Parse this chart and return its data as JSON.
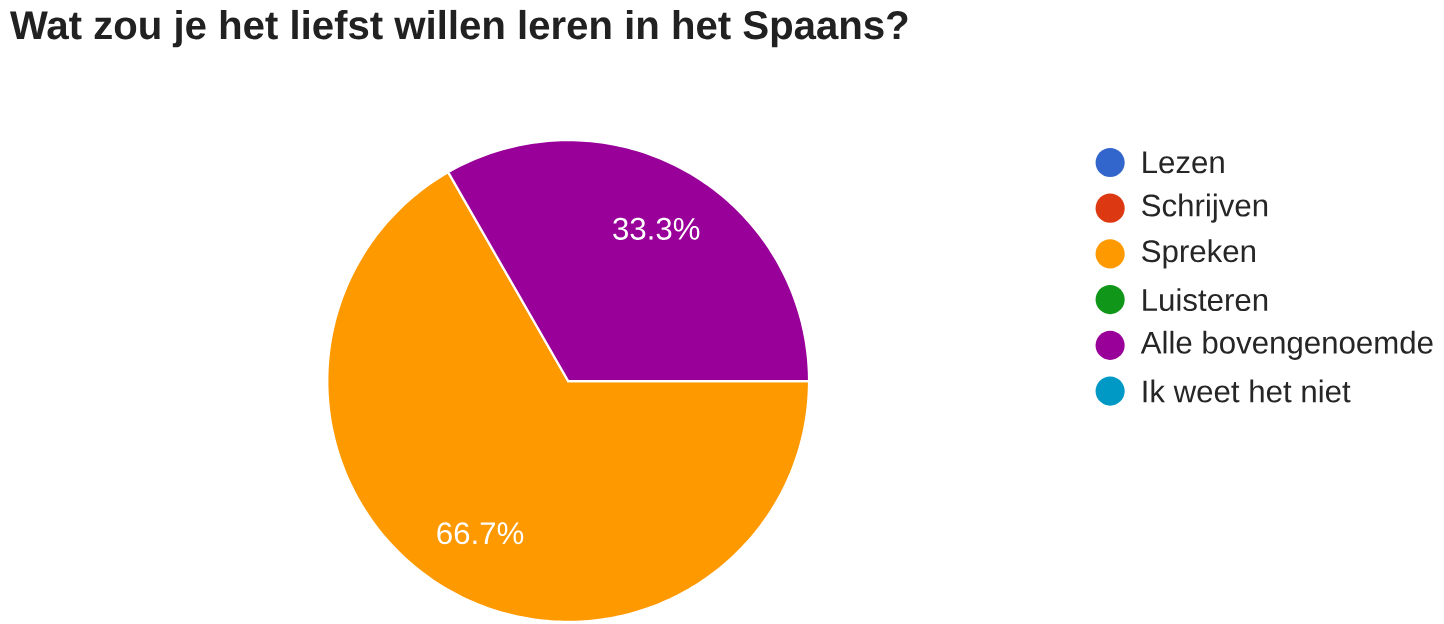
{
  "chart_data": {
    "type": "pie",
    "title": "Wat zou je het liefst willen leren in het Spaans?",
    "categories": [
      "Lezen",
      "Schrijven",
      "Spreken",
      "Luisteren",
      "Alle bovengenoemde",
      "Ik weet het niet"
    ],
    "values": [
      0,
      0,
      66.7,
      0,
      33.3,
      0
    ],
    "value_labels": [
      null,
      null,
      "66.7%",
      null,
      "33.3%",
      null
    ],
    "colors": [
      "#3366cc",
      "#dc3912",
      "#ff9900",
      "#109618",
      "#990099",
      "#0099c6"
    ],
    "legend": "right"
  }
}
